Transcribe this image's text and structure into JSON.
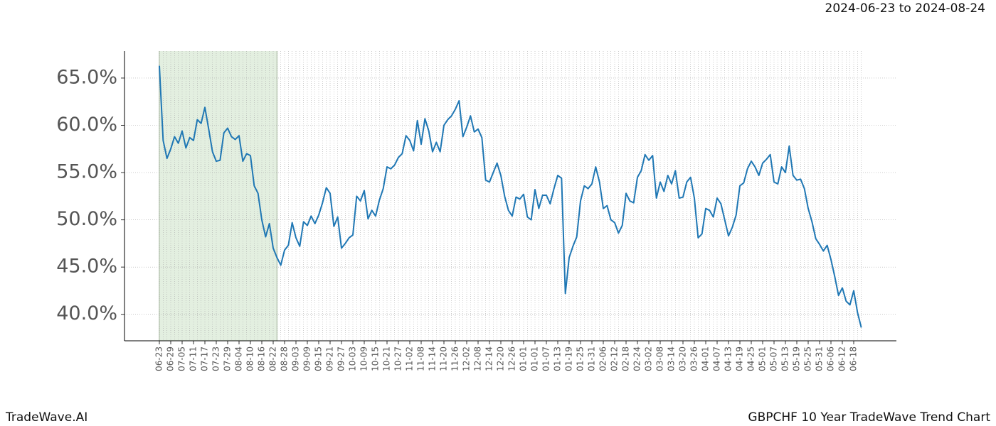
{
  "chart_data": {
    "type": "line",
    "title": "GBPCHF 10 Year TradeWave Trend Chart",
    "source": "TradeWave.AI",
    "highlight": {
      "label": "2024-06-23 to 2024-08-24",
      "start": 0,
      "end": 31
    },
    "color": "#1f77b4",
    "grid": true,
    "categories": [
      "06-23",
      null,
      null,
      "06-29",
      null,
      null,
      "07-05",
      null,
      null,
      "07-11",
      null,
      null,
      "07-17",
      null,
      null,
      "07-23",
      null,
      null,
      "07-29",
      null,
      null,
      "08-04",
      null,
      null,
      "08-10",
      null,
      null,
      "08-16",
      null,
      null,
      "08-22",
      null,
      null,
      "08-28",
      null,
      null,
      "09-03",
      null,
      null,
      "09-09",
      null,
      null,
      "09-15",
      null,
      null,
      "09-21",
      null,
      null,
      "09-27",
      null,
      null,
      "10-03",
      null,
      null,
      "10-09",
      null,
      null,
      "10-15",
      null,
      null,
      "10-21",
      null,
      null,
      "10-27",
      null,
      null,
      "11-02",
      null,
      null,
      "11-08",
      null,
      null,
      "11-14",
      null,
      null,
      "11-20",
      null,
      null,
      "11-26",
      null,
      null,
      "12-02",
      null,
      null,
      "12-08",
      null,
      null,
      "12-14",
      null,
      null,
      "12-20",
      null,
      null,
      "12-26",
      null,
      null,
      "01-01",
      null,
      null,
      "01-01",
      null,
      null,
      "01-07",
      null,
      null,
      "01-13",
      null,
      null,
      "01-19",
      null,
      null,
      "01-25",
      null,
      null,
      "01-31",
      null,
      null,
      "02-06",
      null,
      null,
      "02-12",
      null,
      null,
      "02-18",
      null,
      null,
      "02-24",
      null,
      null,
      "03-02",
      null,
      null,
      "03-08",
      null,
      null,
      "03-14",
      null,
      null,
      "03-20",
      null,
      null,
      "03-26",
      null,
      null,
      "04-01",
      null,
      null,
      "04-07",
      null,
      null,
      "04-13",
      null,
      null,
      "04-19",
      null,
      null,
      "04-25",
      null,
      null,
      "05-01",
      null,
      null,
      "05-07",
      null,
      null,
      "05-13",
      null,
      null,
      "05-19",
      null,
      null,
      "05-25",
      null,
      null,
      "05-31",
      null,
      null,
      "06-06",
      null,
      null,
      "06-12",
      null,
      null,
      "06-18",
      null,
      null
    ],
    "values": [
      66.3,
      58.4,
      56.5,
      57.5,
      58.8,
      58.1,
      59.4,
      57.6,
      58.7,
      58.4,
      60.6,
      60.2,
      61.9,
      59.6,
      57.2,
      56.2,
      56.3,
      59.2,
      59.7,
      58.8,
      58.5,
      58.9,
      56.2,
      57.0,
      56.8,
      53.6,
      52.8,
      50.0,
      48.2,
      49.6,
      47.0,
      46.0,
      45.2,
      46.8,
      47.3,
      49.7,
      48.1,
      47.2,
      49.8,
      49.4,
      50.4,
      49.6,
      50.5,
      51.8,
      53.4,
      52.8,
      49.3,
      50.3,
      47.0,
      47.5,
      48.1,
      48.4,
      52.5,
      52.0,
      53.1,
      50.1,
      51.0,
      50.4,
      52.1,
      53.3,
      55.6,
      55.4,
      55.8,
      56.6,
      57.0,
      58.9,
      58.4,
      57.3,
      60.5,
      58.0,
      60.7,
      59.4,
      57.2,
      58.2,
      57.2,
      60.0,
      60.6,
      61.0,
      61.7,
      62.6,
      58.8,
      59.8,
      61.0,
      59.3,
      59.6,
      58.7,
      54.2,
      54.0,
      55.0,
      56.0,
      54.7,
      52.5,
      51.0,
      50.4,
      52.4,
      52.2,
      52.7,
      50.3,
      50.0,
      53.2,
      51.2,
      52.6,
      52.6,
      51.7,
      53.3,
      54.7,
      54.4,
      42.2,
      46.0,
      47.2,
      48.2,
      52.0,
      53.6,
      53.3,
      53.8,
      55.6,
      54.0,
      51.2,
      51.5,
      50.0,
      49.7,
      48.6,
      49.4,
      52.8,
      52.0,
      51.8,
      54.5,
      55.2,
      56.9,
      56.3,
      56.8,
      52.3,
      54.0,
      53.0,
      54.7,
      53.8,
      55.2,
      52.3,
      52.4,
      54.0,
      54.5,
      52.3,
      48.1,
      48.5,
      51.2,
      51.0,
      50.3,
      52.3,
      51.7,
      50.0,
      48.3,
      49.2,
      50.5,
      53.6,
      53.9,
      55.4,
      56.2,
      55.6,
      54.7,
      56.0,
      56.4,
      56.9,
      54.0,
      53.8,
      55.6,
      55.0,
      57.8,
      54.7,
      54.2,
      54.3,
      53.3,
      51.2,
      49.8,
      48.0,
      47.4,
      46.7,
      47.3,
      45.8,
      44.0,
      42.0,
      42.8,
      41.4,
      41.0,
      42.5,
      40.2,
      38.6
    ],
    "ylim": [
      37.2,
      67.85
    ],
    "yticks": [
      {
        "value": 40,
        "label": "40.0%"
      },
      {
        "value": 45,
        "label": "45.0%"
      },
      {
        "value": 50,
        "label": "50.0%"
      },
      {
        "value": 55,
        "label": "55.0%"
      },
      {
        "value": 60,
        "label": "60.0%"
      },
      {
        "value": 65,
        "label": "65.0%"
      }
    ]
  }
}
